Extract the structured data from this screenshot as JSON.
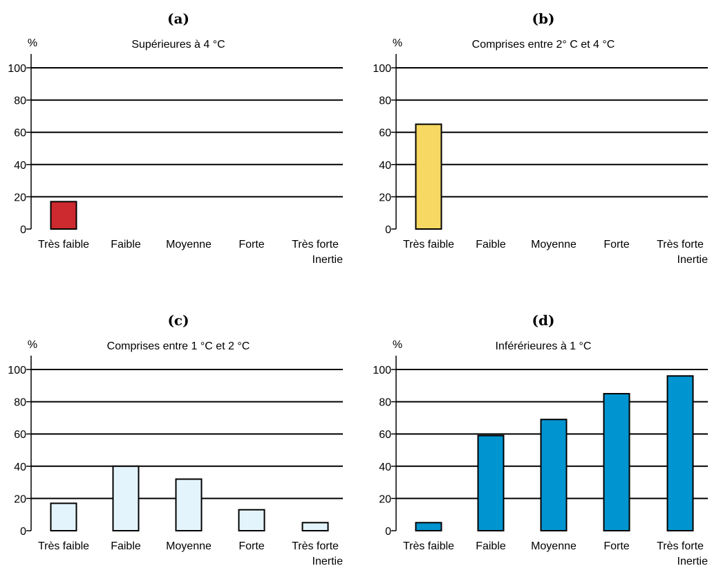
{
  "figure": {
    "panels": [
      {
        "letter": "(a)",
        "title": "Supérieures à 4 °C"
      },
      {
        "letter": "(b)",
        "title": "Comprises entre 2° C et 4 °C"
      },
      {
        "letter": "(c)",
        "title": "Comprises entre 1 °C et 2 °C"
      },
      {
        "letter": "(d)",
        "title": "Inférérieures à 1 °C"
      }
    ]
  },
  "chart_data": [
    {
      "type": "bar",
      "title": "Supérieures à 4 °C",
      "panel": "(a)",
      "ylabel": "%",
      "xlabel": "Inertie",
      "categories": [
        "Très faible",
        "Faible",
        "Moyenne",
        "Forte",
        "Très forte"
      ],
      "values": [
        17,
        0,
        0,
        0,
        0
      ],
      "ylim": [
        0,
        100
      ],
      "yticks": [
        0,
        20,
        40,
        60,
        80,
        100
      ],
      "grid": true,
      "color": "#cc2a2f"
    },
    {
      "type": "bar",
      "title": "Comprises entre 2° C et 4 °C",
      "panel": "(b)",
      "ylabel": "%",
      "xlabel": "Inertie",
      "categories": [
        "Très faible",
        "Faible",
        "Moyenne",
        "Forte",
        "Très forte"
      ],
      "values": [
        65,
        0,
        0,
        0,
        0
      ],
      "ylim": [
        0,
        100
      ],
      "yticks": [
        0,
        20,
        40,
        60,
        80,
        100
      ],
      "grid": true,
      "color": "#f6d862"
    },
    {
      "type": "bar",
      "title": "Comprises entre 1 °C et 2 °C",
      "panel": "(c)",
      "ylabel": "%",
      "xlabel": "Inertie",
      "categories": [
        "Très faible",
        "Faible",
        "Moyenne",
        "Forte",
        "Très forte"
      ],
      "values": [
        17,
        40,
        32,
        13,
        5
      ],
      "ylim": [
        0,
        100
      ],
      "yticks": [
        0,
        20,
        40,
        60,
        80,
        100
      ],
      "grid": true,
      "color": "#e4f4fd"
    },
    {
      "type": "bar",
      "title": "Inférérieures à 1 °C",
      "panel": "(d)",
      "ylabel": "%",
      "xlabel": "Inertie",
      "categories": [
        "Très faible",
        "Faible",
        "Moyenne",
        "Forte",
        "Très forte"
      ],
      "values": [
        5,
        59,
        69,
        85,
        96
      ],
      "ylim": [
        0,
        100
      ],
      "yticks": [
        0,
        20,
        40,
        60,
        80,
        100
      ],
      "grid": true,
      "color": "#0095d0"
    }
  ]
}
